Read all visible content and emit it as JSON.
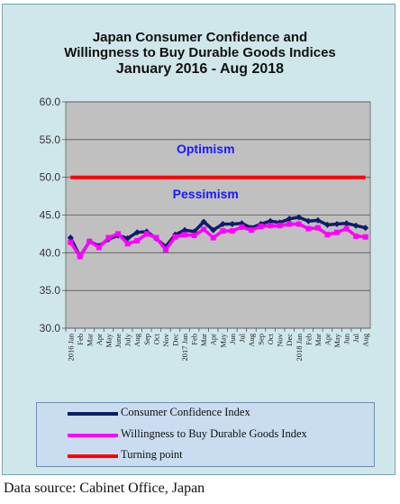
{
  "chart_data": {
    "type": "line",
    "title": "Japan Consumer Confidence and",
    "title_line2": "Willingness to Buy Durable Goods Indices",
    "subtitle": "January 2016 - Aug 2018",
    "ylim": [
      30,
      60
    ],
    "y_ticks": [
      "30.0",
      "35.0",
      "40.0",
      "45.0",
      "50.0",
      "55.0",
      "60.0"
    ],
    "x_tick_labels": [
      "2016 Jan",
      "Feb",
      "Mar",
      "Apr",
      "May",
      "June",
      "July",
      "Aug",
      "Sep",
      "Oct",
      "Nov",
      "Dec",
      "2017 Jan",
      "Feb",
      "Mar",
      "Apr",
      "May",
      "Jun",
      "Jul",
      "Aug",
      "Sep",
      "Oct",
      "Nov",
      "Dec",
      "2018 Jan",
      "Feb",
      "Mar",
      "Apr",
      "May",
      "Jun",
      "Jul",
      "Aug"
    ],
    "grid": true,
    "annotations": [
      {
        "text": "Optimism",
        "x": 14.2,
        "y": 53.2
      },
      {
        "text": "Pessimism",
        "x": 14.2,
        "y": 47.2
      }
    ],
    "series": [
      {
        "name": "Consumer Confidence Index",
        "color": "#0b1f66",
        "marker": "diamond",
        "values": [
          42.0,
          39.5,
          41.5,
          40.9,
          41.8,
          42.3,
          41.9,
          42.7,
          42.8,
          41.9,
          40.8,
          42.4,
          43.0,
          42.8,
          44.1,
          43.0,
          43.8,
          43.8,
          43.9,
          43.3,
          43.8,
          44.2,
          44.0,
          44.5,
          44.7,
          44.2,
          44.3,
          43.7,
          43.8,
          43.9,
          43.6,
          43.3
        ]
      },
      {
        "name": "Willingness to Buy Durable Goods Index",
        "color": "#ff00ff",
        "marker": "square",
        "values": [
          41.4,
          39.5,
          41.5,
          40.7,
          42.0,
          42.5,
          41.2,
          41.6,
          42.5,
          42.0,
          40.4,
          42.1,
          42.4,
          42.3,
          43.1,
          42.0,
          42.9,
          42.9,
          43.4,
          43.0,
          43.5,
          43.6,
          43.6,
          43.8,
          43.8,
          43.2,
          43.3,
          42.4,
          42.7,
          43.2,
          42.2,
          42.1
        ]
      },
      {
        "name": "Turning point",
        "color": "#ff0000",
        "marker": "none",
        "values": [
          50.0,
          50.0,
          50.0,
          50.0,
          50.0,
          50.0,
          50.0,
          50.0,
          50.0,
          50.0,
          50.0,
          50.0,
          50.0,
          50.0,
          50.0,
          50.0,
          50.0,
          50.0,
          50.0,
          50.0,
          50.0,
          50.0,
          50.0,
          50.0,
          50.0,
          50.0,
          50.0,
          50.0,
          50.0,
          50.0,
          50.0,
          50.0
        ]
      }
    ],
    "legend_position": "bottom"
  },
  "legend": {
    "item1": "Consumer Confidence Index",
    "item2": "Willingness to Buy Durable Goods Index",
    "item3": "Turning point",
    "color1": "#0b1f66",
    "color2": "#ff00ff",
    "color3": "#ff0000"
  },
  "footer": {
    "source": "Data source: Cabinet Office, Japan"
  }
}
